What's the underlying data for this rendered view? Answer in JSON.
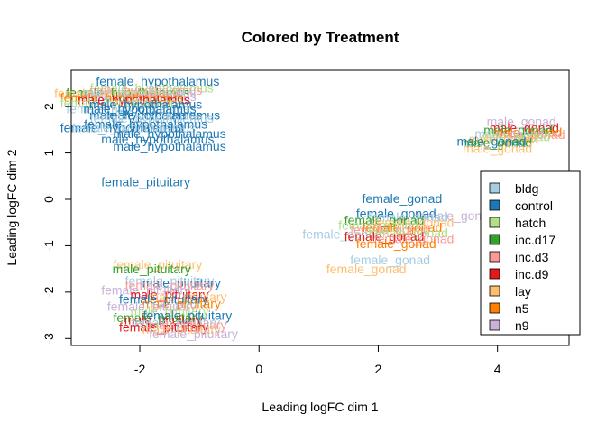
{
  "chart_data": {
    "type": "scatter",
    "title": "Colored by Treatment",
    "xlabel": "Leading logFC dim 1",
    "ylabel": "Leading logFC dim 2",
    "xlim": [
      -3.15,
      5.2
    ],
    "ylim": [
      -3.15,
      2.78
    ],
    "x_ticks": [
      -2,
      0,
      2,
      4
    ],
    "y_ticks": [
      -3,
      -2,
      -1,
      0,
      1,
      2
    ],
    "grid": false,
    "legend_position": "right",
    "legend": [
      {
        "name": "bldg",
        "color": "#a6cee3"
      },
      {
        "name": "control",
        "color": "#1f78b4"
      },
      {
        "name": "hatch",
        "color": "#b2df8a"
      },
      {
        "name": "inc.d17",
        "color": "#33a02c"
      },
      {
        "name": "inc.d3",
        "color": "#fb9a99"
      },
      {
        "name": "inc.d9",
        "color": "#e31a1c"
      },
      {
        "name": "lay",
        "color": "#fdbf6f"
      },
      {
        "name": "n5",
        "color": "#ff7f00"
      },
      {
        "name": "n9",
        "color": "#cab2d6"
      }
    ],
    "points": [
      {
        "x": -1.7,
        "y": 2.55,
        "label": "female_hypothalamus",
        "group": "control"
      },
      {
        "x": -1.8,
        "y": 2.4,
        "label": "female_hypothalamus",
        "group": "hatch"
      },
      {
        "x": -1.9,
        "y": 2.35,
        "label": "male_hypothalamus",
        "group": "inc.d3"
      },
      {
        "x": -2.2,
        "y": 2.3,
        "label": "female_hypothalamus",
        "group": "inc.d17"
      },
      {
        "x": -2.0,
        "y": 2.3,
        "label": "male_hypothalamus",
        "group": "bldg"
      },
      {
        "x": -2.4,
        "y": 2.28,
        "label": "female_hypothalamus",
        "group": "lay"
      },
      {
        "x": -2.0,
        "y": 2.22,
        "label": "male_hypothalamus",
        "group": "n9"
      },
      {
        "x": -2.3,
        "y": 2.2,
        "label": "female_hypothalamus",
        "group": "n5"
      },
      {
        "x": -2.1,
        "y": 2.15,
        "label": "male_hypothalamus",
        "group": "inc.d9"
      },
      {
        "x": -2.3,
        "y": 2.08,
        "label": "female_hypothalamus",
        "group": "hatch"
      },
      {
        "x": -1.9,
        "y": 2.05,
        "label": "male_hypothalamus",
        "group": "control"
      },
      {
        "x": -2.2,
        "y": 1.95,
        "label": "female_hypothalamus",
        "group": "bldg"
      },
      {
        "x": -2.0,
        "y": 1.95,
        "label": "male_hypothalamus",
        "group": "control"
      },
      {
        "x": -1.6,
        "y": 1.82,
        "label": "male_hypothalamus",
        "group": "control"
      },
      {
        "x": -1.9,
        "y": 1.82,
        "label": "male_hypothalamus",
        "group": "control"
      },
      {
        "x": -1.8,
        "y": 1.75,
        "label": "female_hypothalamus",
        "group": "bldg"
      },
      {
        "x": -1.9,
        "y": 1.62,
        "label": "female_hypothalamus",
        "group": "control"
      },
      {
        "x": -2.3,
        "y": 1.55,
        "label": "female_hypothalamus",
        "group": "control"
      },
      {
        "x": -2.1,
        "y": 1.55,
        "label": "female_hypothalamus",
        "group": "bldg"
      },
      {
        "x": -1.5,
        "y": 1.42,
        "label": "male_hypothalamus",
        "group": "control"
      },
      {
        "x": -1.7,
        "y": 1.3,
        "label": "male_hypothalamus",
        "group": "control"
      },
      {
        "x": -1.5,
        "y": 1.15,
        "label": "male_hypothalamus",
        "group": "control"
      },
      {
        "x": -1.9,
        "y": 0.38,
        "label": "female_pituitary",
        "group": "control"
      },
      {
        "x": 4.4,
        "y": 1.68,
        "label": "male_gonad",
        "group": "n9"
      },
      {
        "x": 4.45,
        "y": 1.55,
        "label": "male_gonad",
        "group": "inc.d9"
      },
      {
        "x": 4.35,
        "y": 1.5,
        "label": "male_gonad",
        "group": "inc.d17"
      },
      {
        "x": 4.5,
        "y": 1.45,
        "label": "male_gonad",
        "group": "n5"
      },
      {
        "x": 4.2,
        "y": 1.42,
        "label": "male_gonad",
        "group": "bldg"
      },
      {
        "x": 4.55,
        "y": 1.4,
        "label": "male_gonad",
        "group": "inc.d3"
      },
      {
        "x": 4.3,
        "y": 1.35,
        "label": "male_gonad",
        "group": "hatch"
      },
      {
        "x": 4.1,
        "y": 1.3,
        "label": "male_gonad",
        "group": "lay"
      },
      {
        "x": 3.9,
        "y": 1.25,
        "label": "male_gonad",
        "group": "control"
      },
      {
        "x": 4.0,
        "y": 1.22,
        "label": "male_gonad",
        "group": "inc.d17"
      },
      {
        "x": 4.0,
        "y": 1.1,
        "label": "male_gonad",
        "group": "lay"
      },
      {
        "x": 2.4,
        "y": 0.02,
        "label": "female_gonad",
        "group": "control"
      },
      {
        "x": 3.3,
        "y": -0.35,
        "label": "female_gonad",
        "group": "n9"
      },
      {
        "x": 2.3,
        "y": -0.3,
        "label": "female_gonad",
        "group": "control"
      },
      {
        "x": 2.5,
        "y": -0.38,
        "label": "female_gonad",
        "group": "bldg"
      },
      {
        "x": 2.1,
        "y": -0.45,
        "label": "female_gonad",
        "group": "inc.d17"
      },
      {
        "x": 2.6,
        "y": -0.5,
        "label": "female_gonad",
        "group": "lay"
      },
      {
        "x": 2.0,
        "y": -0.55,
        "label": "female_gonad",
        "group": "hatch"
      },
      {
        "x": 2.4,
        "y": -0.6,
        "label": "female_gonad",
        "group": "n5"
      },
      {
        "x": 2.2,
        "y": -0.65,
        "label": "female_gonad",
        "group": "inc.d3"
      },
      {
        "x": 1.4,
        "y": -0.75,
        "label": "female_gonad",
        "group": "bldg"
      },
      {
        "x": 2.5,
        "y": -0.72,
        "label": "female_gonad",
        "group": "hatch"
      },
      {
        "x": 2.1,
        "y": -0.8,
        "label": "female_gonad",
        "group": "inc.d9"
      },
      {
        "x": 2.6,
        "y": -0.85,
        "label": "female_gonad",
        "group": "inc.d3"
      },
      {
        "x": 2.3,
        "y": -0.95,
        "label": "female_gonad",
        "group": "n5"
      },
      {
        "x": 2.2,
        "y": -1.3,
        "label": "female_gonad",
        "group": "bldg"
      },
      {
        "x": 1.8,
        "y": -1.5,
        "label": "female_gonad",
        "group": "lay"
      },
      {
        "x": -1.7,
        "y": -1.4,
        "label": "female_pituitary",
        "group": "lay"
      },
      {
        "x": -1.8,
        "y": -1.5,
        "label": "male_pituitary",
        "group": "inc.d17"
      },
      {
        "x": -1.5,
        "y": -1.75,
        "label": "female_pituitary",
        "group": "bldg"
      },
      {
        "x": -1.3,
        "y": -1.8,
        "label": "male_pituitary",
        "group": "control"
      },
      {
        "x": -1.5,
        "y": -1.85,
        "label": "female_pituitary",
        "group": "inc.d3"
      },
      {
        "x": -1.9,
        "y": -1.95,
        "label": "female_pituitary",
        "group": "n9"
      },
      {
        "x": -1.5,
        "y": -2.05,
        "label": "male_pituitary",
        "group": "inc.d9"
      },
      {
        "x": -1.2,
        "y": -2.1,
        "label": "male_pituitary",
        "group": "lay"
      },
      {
        "x": -1.6,
        "y": -2.15,
        "label": "female_pituitary",
        "group": "control"
      },
      {
        "x": -1.3,
        "y": -2.25,
        "label": "male_pituitary",
        "group": "n5"
      },
      {
        "x": -1.8,
        "y": -2.3,
        "label": "female_pituitary",
        "group": "n9"
      },
      {
        "x": -1.5,
        "y": -2.4,
        "label": "male_pituitary",
        "group": "hatch"
      },
      {
        "x": -1.2,
        "y": -2.5,
        "label": "female_pituitary",
        "group": "control"
      },
      {
        "x": -1.7,
        "y": -2.55,
        "label": "female_pituitary",
        "group": "inc.d17"
      },
      {
        "x": -1.6,
        "y": -2.6,
        "label": "male_pituitary",
        "group": "inc.d9"
      },
      {
        "x": -1.4,
        "y": -2.65,
        "label": "female_pituitary",
        "group": "bldg"
      },
      {
        "x": -1.2,
        "y": -2.7,
        "label": "male_pituitary",
        "group": "inc.d3"
      },
      {
        "x": -1.6,
        "y": -2.75,
        "label": "female_pituitary",
        "group": "inc.d9"
      },
      {
        "x": -1.3,
        "y": -2.8,
        "label": "male_pituitary",
        "group": "lay"
      },
      {
        "x": -1.1,
        "y": -2.9,
        "label": "female_pituitary",
        "group": "n9"
      }
    ]
  }
}
